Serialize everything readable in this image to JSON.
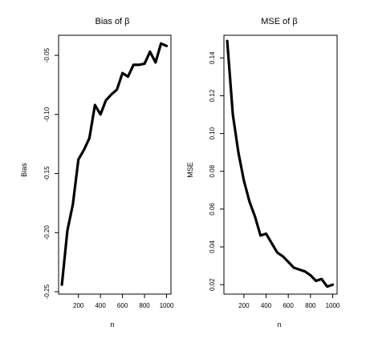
{
  "chart_data": [
    {
      "type": "line",
      "title": "Bias of  β",
      "xlabel": "n",
      "ylabel": "Bias",
      "xlim": [
        20,
        1040
      ],
      "ylim": [
        -0.252,
        -0.033
      ],
      "x_ticks": [
        200,
        400,
        600,
        800,
        1000
      ],
      "x_tick_labels": [
        "200",
        "400",
        "600",
        "800",
        "1000"
      ],
      "y_ticks": [
        -0.25,
        -0.2,
        -0.15,
        -0.1,
        -0.05
      ],
      "y_tick_labels": [
        "-0.25",
        "-0.20",
        "-0.15",
        "-0.10",
        "-0.05"
      ],
      "grid": false,
      "series": [
        {
          "x": [
            50,
            100,
            150,
            200,
            250,
            300,
            350,
            400,
            450,
            500,
            550,
            600,
            650,
            700,
            750,
            800,
            850,
            900,
            950,
            1000
          ],
          "y": [
            -0.244,
            -0.198,
            -0.176,
            -0.138,
            -0.13,
            -0.12,
            -0.092,
            -0.1,
            -0.088,
            -0.083,
            -0.079,
            -0.065,
            -0.068,
            -0.058,
            -0.058,
            -0.057,
            -0.047,
            -0.056,
            -0.04,
            -0.042
          ]
        }
      ]
    },
    {
      "type": "line",
      "title": "MSE of  β",
      "xlabel": "n",
      "ylabel": "MSE",
      "xlim": [
        20,
        1040
      ],
      "ylim": [
        0.015,
        0.152
      ],
      "x_ticks": [
        200,
        400,
        600,
        800,
        1000
      ],
      "x_tick_labels": [
        "200",
        "400",
        "600",
        "800",
        "1000"
      ],
      "y_ticks": [
        0.02,
        0.04,
        0.06,
        0.08,
        0.1,
        0.12,
        0.14
      ],
      "y_tick_labels": [
        "0.02",
        "0.04",
        "0.06",
        "0.08",
        "0.10",
        "0.12",
        "0.14"
      ],
      "grid": false,
      "series": [
        {
          "x": [
            50,
            100,
            150,
            200,
            250,
            300,
            350,
            400,
            450,
            500,
            550,
            600,
            650,
            700,
            750,
            800,
            850,
            900,
            950,
            1000
          ],
          "y": [
            0.149,
            0.11,
            0.09,
            0.075,
            0.064,
            0.056,
            0.046,
            0.047,
            0.042,
            0.037,
            0.035,
            0.032,
            0.029,
            0.028,
            0.027,
            0.025,
            0.022,
            0.023,
            0.019,
            0.02
          ]
        }
      ]
    }
  ]
}
